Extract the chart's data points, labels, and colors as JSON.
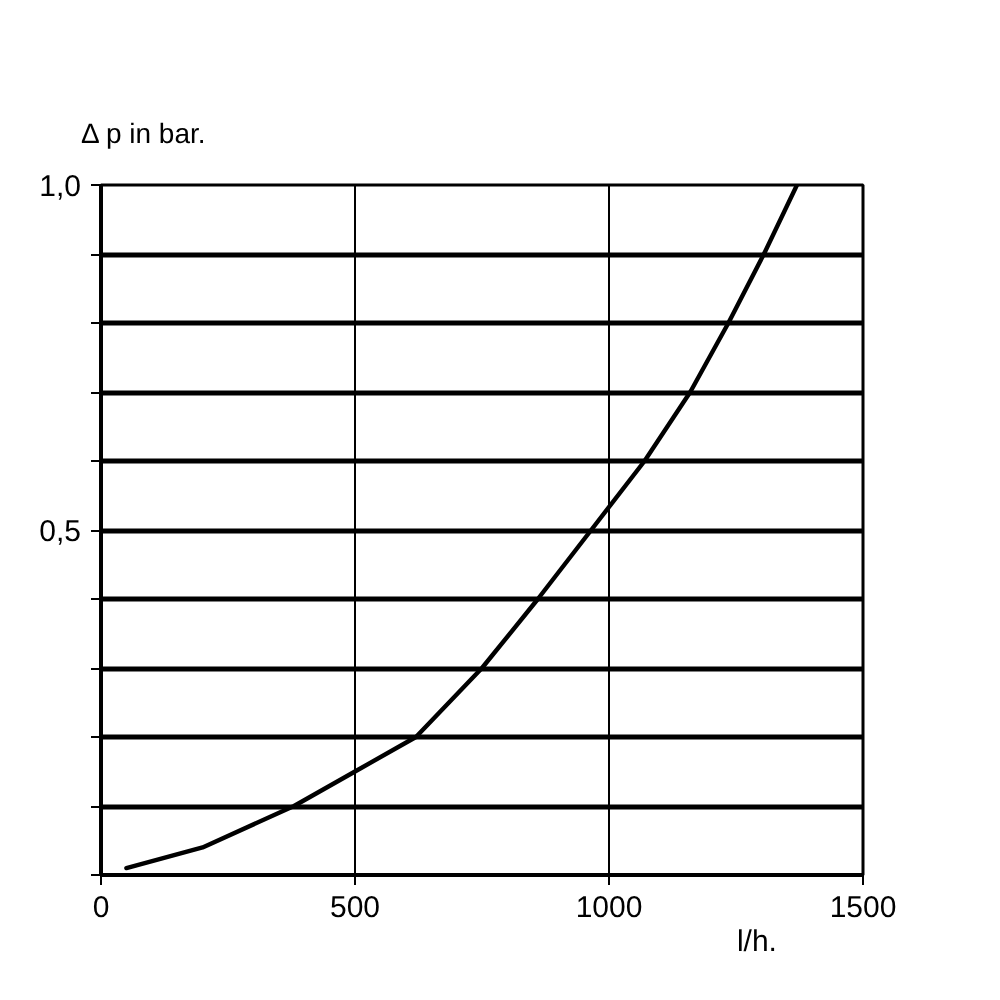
{
  "chart_data": {
    "type": "line",
    "ylabel": "Δ p in bar.",
    "xlabel": "l/h.",
    "x": [
      50,
      200,
      380,
      500,
      620,
      750,
      860,
      965,
      1070,
      1160,
      1235,
      1305,
      1370
    ],
    "series": [
      {
        "color": "#000000",
        "values": [
          0.01,
          0.04,
          0.1,
          0.15,
          0.2,
          0.3,
          0.4,
          0.5,
          0.6,
          0.7,
          0.8,
          0.9,
          1.0
        ]
      }
    ],
    "xlim": [
      0,
      1500
    ],
    "ylim": [
      0,
      1.0
    ],
    "xticks": [
      0,
      500,
      1000,
      1500
    ],
    "yticks": [
      {
        "value": 0,
        "label": null
      },
      {
        "value": 0.1,
        "label": null
      },
      {
        "value": 0.2,
        "label": null
      },
      {
        "value": 0.3,
        "label": null
      },
      {
        "value": 0.4,
        "label": null
      },
      {
        "value": 0.5,
        "label": "0,5"
      },
      {
        "value": 0.6,
        "label": null
      },
      {
        "value": 0.7,
        "label": null
      },
      {
        "value": 0.8,
        "label": null
      },
      {
        "value": 0.9,
        "label": null
      },
      {
        "value": 1.0,
        "label": "1,0"
      }
    ],
    "grid": true
  }
}
